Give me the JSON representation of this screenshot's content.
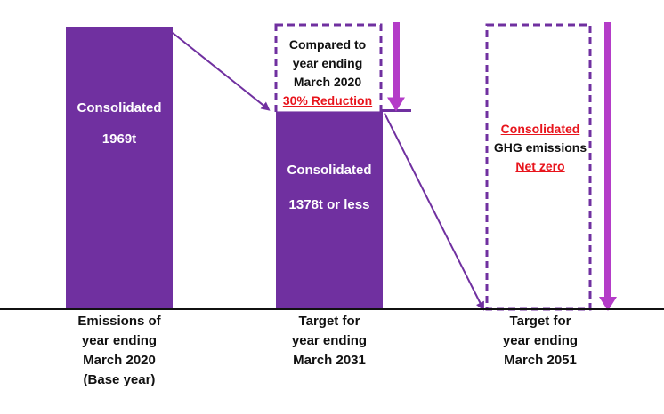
{
  "chart_data": {
    "type": "bar",
    "unit": "t",
    "categories": [
      [
        "Emissions of",
        "year ending",
        "March 2020",
        "(Base year)"
      ],
      [
        "Target for",
        "year ending",
        "March 2031"
      ],
      [
        "Target for",
        "year ending",
        "March 2051"
      ]
    ],
    "values": [
      1969,
      1378,
      0
    ],
    "ylim": [
      0,
      2100
    ],
    "bar_labels": [
      [
        "Consolidated",
        "1969t"
      ],
      [
        "Consolidated",
        "1378t or less"
      ],
      []
    ],
    "annotations": {
      "reduction_box": {
        "lines": [
          "Compared to",
          "year ending",
          "March 2020"
        ],
        "highlight": "30% Reduction",
        "reduction_percent": 30
      },
      "netzero_box": {
        "highlight_top": "Consolidated",
        "middle": "GHG emissions",
        "highlight_bottom": "Net zero"
      }
    },
    "colors": {
      "bar": "#7030a0",
      "highlight_text": "#e8141c",
      "arrow": "#b43cc8",
      "dash": "#7030a0"
    }
  }
}
